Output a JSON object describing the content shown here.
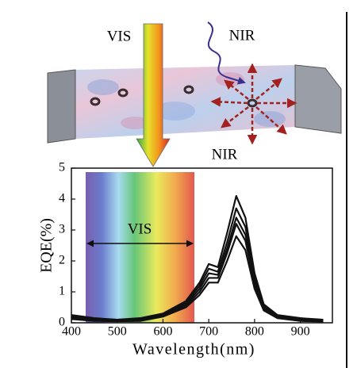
{
  "diagram": {
    "vis_label": "VIS",
    "nir_in_label": "NIR",
    "nir_out_label": "NIR"
  },
  "chart_data": {
    "type": "line",
    "x": [
      400,
      450,
      500,
      550,
      600,
      650,
      680,
      700,
      720,
      740,
      760,
      780,
      800,
      820,
      850,
      900,
      950
    ],
    "series": [
      {
        "color": "#111111",
        "values": [
          0.25,
          0.15,
          0.1,
          0.15,
          0.3,
          0.7,
          1.3,
          1.9,
          1.8,
          2.9,
          4.1,
          3.4,
          1.6,
          0.6,
          0.25,
          0.15,
          0.1
        ]
      },
      {
        "color": "#111111",
        "values": [
          0.2,
          0.12,
          0.1,
          0.12,
          0.28,
          0.65,
          1.2,
          1.75,
          1.65,
          2.6,
          3.7,
          3.1,
          1.45,
          0.55,
          0.22,
          0.12,
          0.08
        ]
      },
      {
        "color": "#111111",
        "values": [
          0.18,
          0.1,
          0.08,
          0.1,
          0.25,
          0.6,
          1.1,
          1.6,
          1.55,
          2.4,
          3.4,
          2.85,
          1.35,
          0.5,
          0.2,
          0.1,
          0.06
        ]
      },
      {
        "color": "#111111",
        "values": [
          0.15,
          0.08,
          0.06,
          0.08,
          0.22,
          0.55,
          1.0,
          1.45,
          1.45,
          2.25,
          3.2,
          2.65,
          1.25,
          0.45,
          0.18,
          0.08,
          0.05
        ]
      },
      {
        "color": "#111111",
        "values": [
          0.12,
          0.06,
          0.05,
          0.06,
          0.2,
          0.5,
          0.9,
          1.3,
          1.3,
          2.0,
          2.8,
          2.35,
          1.1,
          0.4,
          0.15,
          0.06,
          0.04
        ]
      }
    ],
    "xlim": [
      400,
      970
    ],
    "xticks": [
      400,
      500,
      600,
      700,
      800,
      900
    ],
    "ylim": [
      0,
      5
    ],
    "yticks": [
      0,
      1,
      2,
      3,
      4,
      5
    ],
    "xlabel": "Wavelength(nm)",
    "ylabel": "EQE(%)",
    "annotations": [
      "VIS"
    ]
  }
}
